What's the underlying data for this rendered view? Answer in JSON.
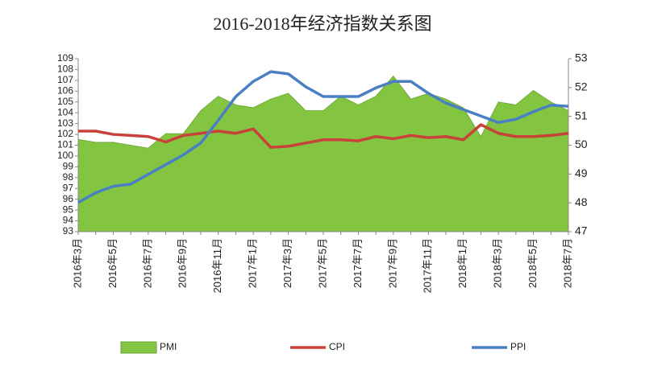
{
  "chart_data": {
    "type": "combo",
    "title": "2016-2018年经济指数关系图",
    "categories": [
      "2016年3月",
      null,
      "2016年5月",
      null,
      "2016年7月",
      null,
      "2016年9月",
      null,
      "2016年11月",
      null,
      "2017年1月",
      null,
      "2017年3月",
      null,
      "2017年5月",
      null,
      "2017年7月",
      null,
      "2017年9月",
      null,
      "2017年11月",
      null,
      "2018年1月",
      null,
      "2018年3月",
      null,
      "2018年5月",
      null,
      "2018年7月"
    ],
    "series": [
      {
        "name": "PMI",
        "kind": "area",
        "axis": "y2",
        "color": "#83c441",
        "values": [
          50.2,
          50.1,
          50.1,
          50.0,
          49.9,
          50.4,
          50.4,
          51.2,
          51.7,
          51.4,
          51.3,
          51.6,
          51.8,
          51.2,
          51.2,
          51.7,
          51.4,
          51.7,
          52.4,
          51.6,
          51.8,
          51.6,
          51.3,
          50.3,
          51.5,
          51.4,
          51.9,
          51.5,
          51.2
        ]
      },
      {
        "name": "CPI",
        "kind": "line",
        "color": "#c9423a",
        "values": [
          102.3,
          102.3,
          102.0,
          101.9,
          101.8,
          101.3,
          101.9,
          102.1,
          102.3,
          102.1,
          102.5,
          100.8,
          100.9,
          101.2,
          101.5,
          101.5,
          101.4,
          101.8,
          101.6,
          101.9,
          101.7,
          101.8,
          101.5,
          102.9,
          102.1,
          101.8,
          101.8,
          101.9,
          102.1
        ]
      },
      {
        "name": "PPI",
        "kind": "line",
        "color": "#4a80c3",
        "values": [
          95.7,
          96.6,
          97.2,
          97.4,
          98.3,
          99.2,
          100.1,
          101.2,
          103.3,
          105.5,
          106.9,
          107.8,
          107.6,
          106.4,
          105.5,
          105.5,
          105.5,
          106.3,
          106.9,
          106.9,
          105.8,
          104.9,
          104.3,
          103.7,
          103.1,
          103.4,
          104.1,
          104.7,
          104.6
        ]
      }
    ],
    "ylim": [
      93,
      109
    ],
    "yticks": [
      93,
      94,
      95,
      96,
      97,
      98,
      99,
      100,
      101,
      102,
      103,
      104,
      105,
      106,
      107,
      108,
      109
    ],
    "y2lim": [
      47,
      53
    ],
    "y2ticks": [
      47,
      48,
      49,
      50,
      51,
      52,
      53
    ]
  }
}
